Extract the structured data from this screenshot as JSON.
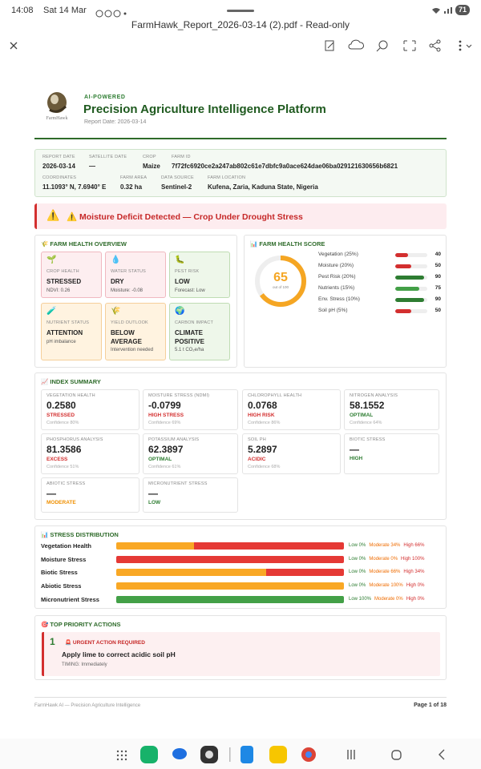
{
  "status_bar": {
    "time": "14:08",
    "date": "Sat 14 Mar",
    "battery": "71"
  },
  "toolbar": {
    "title": "FarmHawk_Report_2026-03-14 (2).pdf - Read-only"
  },
  "report": {
    "logo_text": "FarmHawk",
    "kicker": "AI-POWERED",
    "title": "Precision Agriculture Intelligence Platform",
    "report_date": "Report Date: 2026-03-14",
    "info": [
      {
        "label": "REPORT DATE",
        "value": "2026-03-14"
      },
      {
        "label": "SATELLITE DATE",
        "value": "—"
      },
      {
        "label": "CROP",
        "value": "Maize"
      },
      {
        "label": "FARM ID",
        "value": "7f72fc6920ce2a247ab802c61e7dbfc9a0ace624dae06ba029121630656b6821"
      },
      {
        "label": "COORDINATES",
        "value": "11.1093° N, 7.6940° E"
      },
      {
        "label": "FARM AREA",
        "value": "0.32 ha"
      },
      {
        "label": "DATA SOURCE",
        "value": "Sentinel-2"
      },
      {
        "label": "FARM LOCATION",
        "value": "Kufena, Zaria, Kaduna State, Nigeria"
      }
    ],
    "alert": "⚠️ Moisture Deficit Detected — Crop Under Drought Stress",
    "overview": {
      "title": "🌾 FARM HEALTH OVERVIEW",
      "cards": [
        {
          "icon": "🌱",
          "label": "CROP HEALTH",
          "value": "STRESSED",
          "sub": "NDVI: 0.26",
          "tone": "red"
        },
        {
          "icon": "💧",
          "label": "WATER STATUS",
          "value": "DRY",
          "sub": "Moisture: -0.08",
          "tone": "red"
        },
        {
          "icon": "🐛",
          "label": "PEST RISK",
          "value": "LOW",
          "sub": "Forecast: Low",
          "tone": "green"
        },
        {
          "icon": "🧪",
          "label": "NUTRIENT STATUS",
          "value": "ATTENTION",
          "sub": "pH imbalance",
          "tone": "orange"
        },
        {
          "icon": "🌾",
          "label": "YIELD OUTLOOK",
          "value": "BELOW AVERAGE",
          "sub": "Intervention needed",
          "tone": "orange"
        },
        {
          "icon": "🌍",
          "label": "CARBON IMPACT",
          "value": "CLIMATE POSITIVE",
          "sub": "5.1 t CO₂e/ha",
          "tone": "green"
        }
      ]
    },
    "score": {
      "title": "📊 FARM HEALTH SCORE",
      "value": 65,
      "max": 100,
      "caption": "out of 100",
      "items": [
        {
          "label": "Vegetation (25%)",
          "value": 40,
          "color": "#d32f2f"
        },
        {
          "label": "Moisture (20%)",
          "value": 50,
          "color": "#d32f2f"
        },
        {
          "label": "Pest Risk (20%)",
          "value": 90,
          "color": "#2e7d32"
        },
        {
          "label": "Nutrients (15%)",
          "value": 75,
          "color": "#43a047"
        },
        {
          "label": "Env. Stress (10%)",
          "value": 90,
          "color": "#2e7d32"
        },
        {
          "label": "Soil pH (5%)",
          "value": 50,
          "color": "#d32f2f"
        }
      ]
    },
    "index": {
      "title": "📈 INDEX SUMMARY",
      "cards": [
        {
          "label": "VEGETATION HEALTH",
          "value": "0.2580",
          "status": "STRESSED",
          "status_color": "#d32f2f",
          "confidence": "Confidence 80%"
        },
        {
          "label": "MOISTURE STRESS (NDMI)",
          "value": "-0.0799",
          "status": "HIGH STRESS",
          "status_color": "#d32f2f",
          "confidence": "Confidence 69%"
        },
        {
          "label": "CHLOROPHYLL HEALTH",
          "value": "0.0768",
          "status": "HIGH RISK",
          "status_color": "#d32f2f",
          "confidence": "Confidence 86%"
        },
        {
          "label": "NITROGEN ANALYSIS",
          "value": "58.1552",
          "status": "OPTIMAL",
          "status_color": "#2e7d32",
          "confidence": "Confidence 64%"
        },
        {
          "label": "PHOSPHORUS ANALYSIS",
          "value": "81.3586",
          "status": "EXCESS",
          "status_color": "#d32f2f",
          "confidence": "Confidence 51%"
        },
        {
          "label": "POTASSIUM ANALYSIS",
          "value": "62.3897",
          "status": "OPTIMAL",
          "status_color": "#2e7d32",
          "confidence": "Confidence 61%"
        },
        {
          "label": "SOIL PH",
          "value": "5.2897",
          "status": "ACIDIC",
          "status_color": "#d32f2f",
          "confidence": "Confidence 68%"
        },
        {
          "label": "BIOTIC STRESS",
          "value": "—",
          "status": "HIGH",
          "status_color": "#2e7d32"
        },
        {
          "label": "ABIOTIC STRESS",
          "value": "—",
          "status": "MODERATE",
          "status_color": "#ef8f00"
        },
        {
          "label": "MICRONUTRIENT STRESS",
          "value": "—",
          "status": "LOW",
          "status_color": "#2e7d32"
        }
      ]
    },
    "stress": {
      "title": "📊 STRESS DISTRIBUTION",
      "colors": [
        "#43a047",
        "#f9a825",
        "#e53935"
      ],
      "label_colors": [
        "#2e7d32",
        "#ef6c00",
        "#d32f2f"
      ],
      "rows": [
        {
          "name": "Vegetation Health",
          "segments": [
            {
              "value": 0,
              "label": "Low 0%"
            },
            {
              "value": 34,
              "label": "Moderate 34%"
            },
            {
              "value": 66,
              "label": "High 66%"
            }
          ]
        },
        {
          "name": "Moisture Stress",
          "segments": [
            {
              "value": 0,
              "label": "Low 0%"
            },
            {
              "value": 0,
              "label": "Moderate 0%"
            },
            {
              "value": 100,
              "label": "High 100%"
            }
          ]
        },
        {
          "name": "Biotic Stress",
          "segments": [
            {
              "value": 0,
              "label": "Low 0%"
            },
            {
              "value": 66,
              "label": "Moderate 66%"
            },
            {
              "value": 34,
              "label": "High 34%"
            }
          ]
        },
        {
          "name": "Abiotic Stress",
          "segments": [
            {
              "value": 0,
              "label": "Low 0%"
            },
            {
              "value": 100,
              "label": "Moderate 100%"
            },
            {
              "value": 0,
              "label": "High 0%"
            }
          ]
        },
        {
          "name": "Micronutrient Stress",
          "segments": [
            {
              "value": 100,
              "label": "Low 100%"
            },
            {
              "value": 0,
              "label": "Moderate 0%"
            },
            {
              "value": 0,
              "label": "High 0%"
            }
          ]
        }
      ]
    },
    "actions": {
      "title": "🎯 TOP PRIORITY ACTIONS",
      "items": [
        {
          "rank": "1",
          "badge": "🚨 URGENT ACTION REQUIRED",
          "text": "Apply lime to correct acidic soil pH",
          "timing": "TIMING: Immediately"
        }
      ]
    },
    "footer": {
      "left": "FarmHawk AI — Precision Agriculture Intelligence",
      "right": "Page 1 of 18"
    }
  }
}
